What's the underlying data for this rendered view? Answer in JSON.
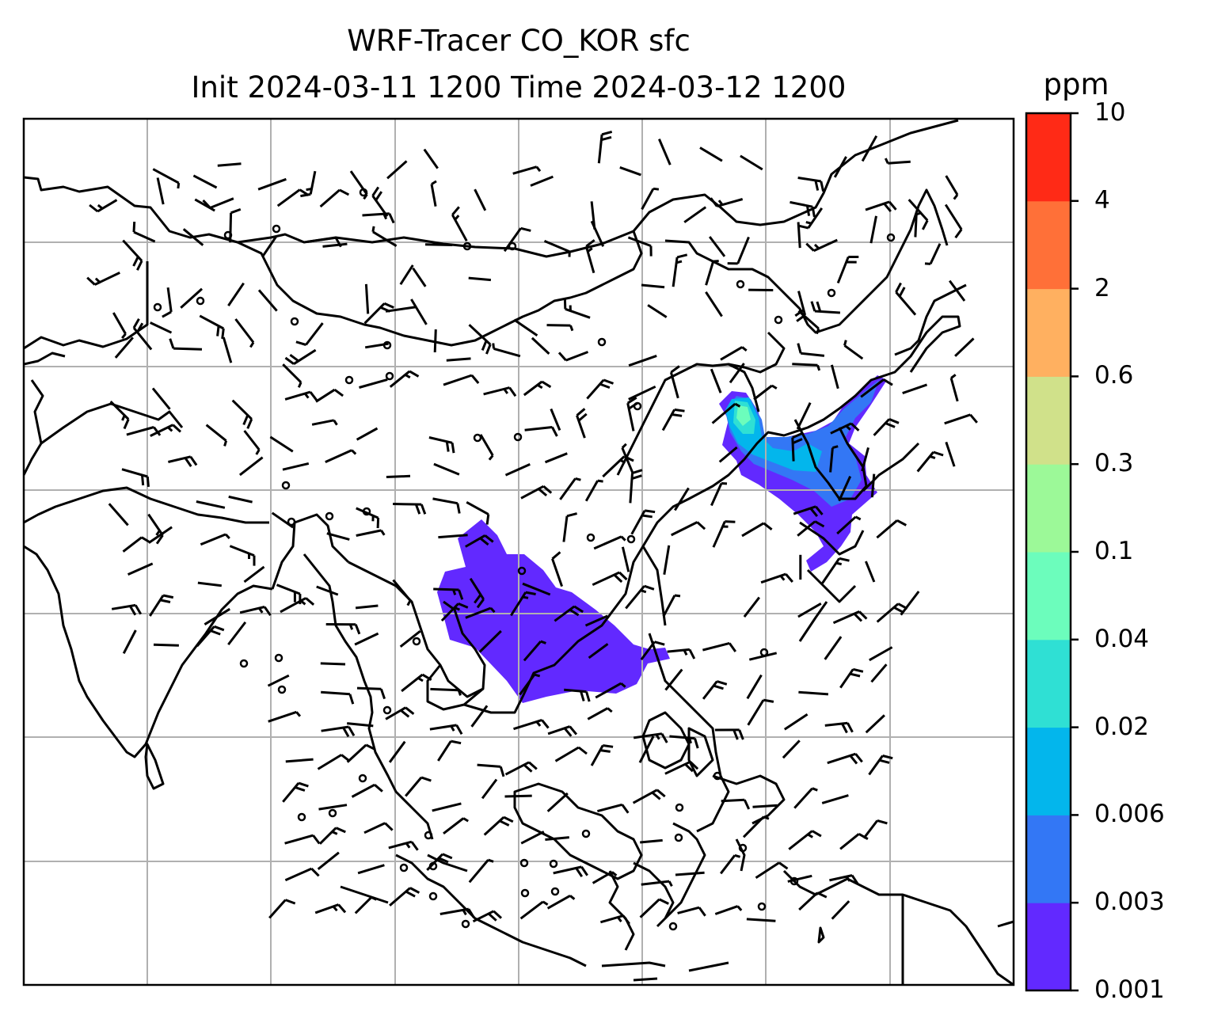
{
  "title_line1": "WRF-Tracer CO_KOR sfc",
  "title_line2": "Init 2024-03-11 1200 Time 2024-03-12 1200",
  "colorbar": {
    "unit": "ppm",
    "levels": [
      "0.001",
      "0.003",
      "0.006",
      "0.02",
      "0.04",
      "0.1",
      "0.3",
      "0.6",
      "2",
      "4",
      "10"
    ],
    "colors": [
      "#6229ff",
      "#3377f5",
      "#03b6ec",
      "#2fe0d4",
      "#6cfdbc",
      "#9cf998",
      "#d0e18a",
      "#ffb060",
      "#ff7038",
      "#ff2a16"
    ]
  },
  "map": {
    "field": "CO_KOR surface tracer concentration",
    "overlay": "wind barbs",
    "plumes": [
      {
        "region": "Korea / East China Sea",
        "max_level": "0.1"
      },
      {
        "region": "Southeast Asia / South China Sea",
        "max_level": "0.003"
      }
    ]
  }
}
